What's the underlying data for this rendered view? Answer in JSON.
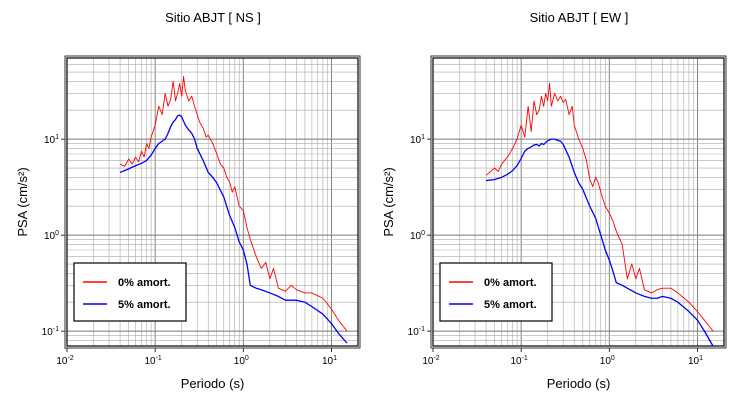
{
  "chart_data": [
    {
      "type": "line",
      "title": "Sitio ABJT [ NS ]",
      "xlabel": "Periodo (s)",
      "ylabel": "PSA (cm/s²)",
      "xscale": "log",
      "yscale": "log",
      "xlim": [
        0.01,
        20
      ],
      "ylim": [
        0.07,
        70
      ],
      "grid": true,
      "legend_position": "bottom-left",
      "xticks": [
        {
          "value": 0.01,
          "mantissa": "10",
          "exp": "-2"
        },
        {
          "value": 0.1,
          "mantissa": "10",
          "exp": "-1"
        },
        {
          "value": 1,
          "mantissa": "10",
          "exp": "0"
        },
        {
          "value": 10,
          "mantissa": "10",
          "exp": "1"
        }
      ],
      "yticks": [
        {
          "value": 0.1,
          "mantissa": "10",
          "exp": "-1"
        },
        {
          "value": 1,
          "mantissa": "10",
          "exp": "0"
        },
        {
          "value": 10,
          "mantissa": "10",
          "exp": "1"
        }
      ],
      "series": [
        {
          "name": "0% amort.",
          "color": "#ff0000",
          "x": [
            0.04,
            0.045,
            0.05,
            0.055,
            0.06,
            0.065,
            0.07,
            0.075,
            0.08,
            0.085,
            0.09,
            0.1,
            0.11,
            0.12,
            0.13,
            0.14,
            0.15,
            0.16,
            0.17,
            0.18,
            0.19,
            0.2,
            0.21,
            0.22,
            0.24,
            0.26,
            0.28,
            0.3,
            0.32,
            0.35,
            0.38,
            0.4,
            0.45,
            0.5,
            0.55,
            0.6,
            0.65,
            0.7,
            0.75,
            0.8,
            0.9,
            1.0,
            1.1,
            1.2,
            1.4,
            1.6,
            1.8,
            2.0,
            2.2,
            2.5,
            3.0,
            3.5,
            4.0,
            5.0,
            6.0,
            8.0,
            10.0,
            12.0,
            15.0
          ],
          "y": [
            5.5,
            5.2,
            6.2,
            5.5,
            6.5,
            5.8,
            7.5,
            6.5,
            9.0,
            8.0,
            10.5,
            14.0,
            22.0,
            18.0,
            30.0,
            22.0,
            26.0,
            40.0,
            25.0,
            30.0,
            38.0,
            28.0,
            45.0,
            32.0,
            25.0,
            28.0,
            22.0,
            18.0,
            15.0,
            13.0,
            10.5,
            11.0,
            9.0,
            7.0,
            5.5,
            5.0,
            4.0,
            3.6,
            2.8,
            3.2,
            2.0,
            1.8,
            1.2,
            0.9,
            0.6,
            0.45,
            0.52,
            0.35,
            0.45,
            0.28,
            0.26,
            0.3,
            0.27,
            0.25,
            0.25,
            0.22,
            0.17,
            0.13,
            0.1
          ]
        },
        {
          "name": "5% amort.",
          "color": "#0000ff",
          "x": [
            0.04,
            0.05,
            0.06,
            0.07,
            0.08,
            0.09,
            0.1,
            0.11,
            0.12,
            0.13,
            0.14,
            0.15,
            0.16,
            0.17,
            0.18,
            0.19,
            0.2,
            0.22,
            0.24,
            0.26,
            0.28,
            0.3,
            0.35,
            0.4,
            0.45,
            0.5,
            0.6,
            0.7,
            0.8,
            0.9,
            1.0,
            1.1,
            1.2,
            1.4,
            1.6,
            2.0,
            2.5,
            3.0,
            3.5,
            4.0,
            5.0,
            6.0,
            8.0,
            10.0,
            12.0,
            15.0
          ],
          "y": [
            4.5,
            4.9,
            5.3,
            5.6,
            6.0,
            6.8,
            8.0,
            9.0,
            9.5,
            10.0,
            11.5,
            13.5,
            15.0,
            16.0,
            17.5,
            17.8,
            17.0,
            14.0,
            12.5,
            11.5,
            10.0,
            8.0,
            6.0,
            4.5,
            4.0,
            3.5,
            2.5,
            1.6,
            1.2,
            0.85,
            0.7,
            0.5,
            0.3,
            0.28,
            0.27,
            0.25,
            0.23,
            0.21,
            0.21,
            0.21,
            0.2,
            0.18,
            0.15,
            0.12,
            0.095,
            0.075
          ]
        }
      ]
    },
    {
      "type": "line",
      "title": "Sitio ABJT [ EW ]",
      "xlabel": "Periodo (s)",
      "ylabel": "PSA (cm/s²)",
      "xscale": "log",
      "yscale": "log",
      "xlim": [
        0.01,
        20
      ],
      "ylim": [
        0.07,
        70
      ],
      "grid": true,
      "legend_position": "bottom-left",
      "xticks": [
        {
          "value": 0.01,
          "mantissa": "10",
          "exp": "-2"
        },
        {
          "value": 0.1,
          "mantissa": "10",
          "exp": "-1"
        },
        {
          "value": 1,
          "mantissa": "10",
          "exp": "0"
        },
        {
          "value": 10,
          "mantissa": "10",
          "exp": "1"
        }
      ],
      "yticks": [
        {
          "value": 0.1,
          "mantissa": "10",
          "exp": "-1"
        },
        {
          "value": 1,
          "mantissa": "10",
          "exp": "0"
        },
        {
          "value": 10,
          "mantissa": "10",
          "exp": "1"
        }
      ],
      "series": [
        {
          "name": "0% amort.",
          "color": "#ff0000",
          "x": [
            0.04,
            0.045,
            0.05,
            0.055,
            0.06,
            0.07,
            0.08,
            0.09,
            0.1,
            0.11,
            0.12,
            0.13,
            0.14,
            0.15,
            0.16,
            0.17,
            0.18,
            0.19,
            0.2,
            0.21,
            0.22,
            0.24,
            0.26,
            0.28,
            0.3,
            0.32,
            0.35,
            0.38,
            0.4,
            0.45,
            0.5,
            0.55,
            0.6,
            0.65,
            0.7,
            0.75,
            0.8,
            0.9,
            1.0,
            1.1,
            1.2,
            1.4,
            1.6,
            1.8,
            2.0,
            2.2,
            2.5,
            3.0,
            3.5,
            4.0,
            5.0,
            6.0,
            8.0,
            10.0,
            12.0,
            15.0
          ],
          "y": [
            4.2,
            4.6,
            5.0,
            4.6,
            5.5,
            6.5,
            8.0,
            10.0,
            14.0,
            10.5,
            22.0,
            12.0,
            25.0,
            18.0,
            20.0,
            28.0,
            22.0,
            30.0,
            25.0,
            38.0,
            22.0,
            30.0,
            25.0,
            28.0,
            24.0,
            26.0,
            18.0,
            22.0,
            14.0,
            10.0,
            8.0,
            6.0,
            3.8,
            3.2,
            4.0,
            3.5,
            2.8,
            2.0,
            1.7,
            1.4,
            1.1,
            0.8,
            0.35,
            0.5,
            0.35,
            0.45,
            0.27,
            0.25,
            0.27,
            0.28,
            0.28,
            0.25,
            0.2,
            0.16,
            0.13,
            0.1
          ]
        },
        {
          "name": "5% amort.",
          "color": "#0000ff",
          "x": [
            0.04,
            0.05,
            0.06,
            0.07,
            0.08,
            0.09,
            0.1,
            0.11,
            0.12,
            0.13,
            0.14,
            0.15,
            0.16,
            0.17,
            0.18,
            0.19,
            0.2,
            0.22,
            0.24,
            0.26,
            0.28,
            0.3,
            0.35,
            0.4,
            0.45,
            0.5,
            0.6,
            0.7,
            0.8,
            0.9,
            1.0,
            1.1,
            1.2,
            1.4,
            1.6,
            2.0,
            2.5,
            3.0,
            3.5,
            4.0,
            5.0,
            6.0,
            8.0,
            10.0,
            12.0,
            15.0
          ],
          "y": [
            3.7,
            3.8,
            4.0,
            4.3,
            4.7,
            5.3,
            6.3,
            7.5,
            8.0,
            8.3,
            8.7,
            8.8,
            8.5,
            9.0,
            8.8,
            9.2,
            9.6,
            10.0,
            10.0,
            9.7,
            9.5,
            8.8,
            6.5,
            4.5,
            3.5,
            3.0,
            2.0,
            1.5,
            1.0,
            0.7,
            0.55,
            0.42,
            0.32,
            0.3,
            0.28,
            0.25,
            0.23,
            0.22,
            0.22,
            0.23,
            0.22,
            0.2,
            0.16,
            0.13,
            0.1,
            0.07
          ]
        }
      ]
    }
  ]
}
